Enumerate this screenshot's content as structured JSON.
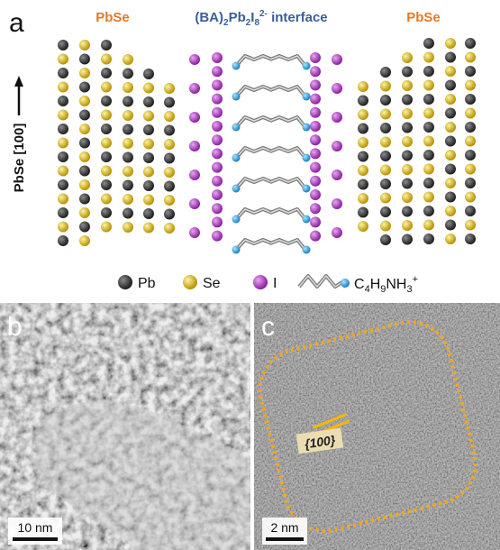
{
  "panel_a": {
    "label": "a",
    "left_title": "PbSe",
    "center_title": {
      "parts": [
        "(BA)",
        "2",
        "Pb",
        "2",
        "I",
        "8",
        "2-",
        " interface"
      ]
    },
    "right_title": "PbSe",
    "axis_label": "PbSe [100]",
    "legend": {
      "pb": "Pb",
      "se": "Se",
      "i": "I",
      "ligand": [
        "C",
        "4",
        "H",
        "9",
        "NH",
        "3",
        "+"
      ]
    }
  },
  "panel_b": {
    "label": "b",
    "scale_bar": "10 nm"
  },
  "panel_c": {
    "label": "c",
    "scale_bar": "2 nm",
    "facet_label": "{100}"
  }
}
